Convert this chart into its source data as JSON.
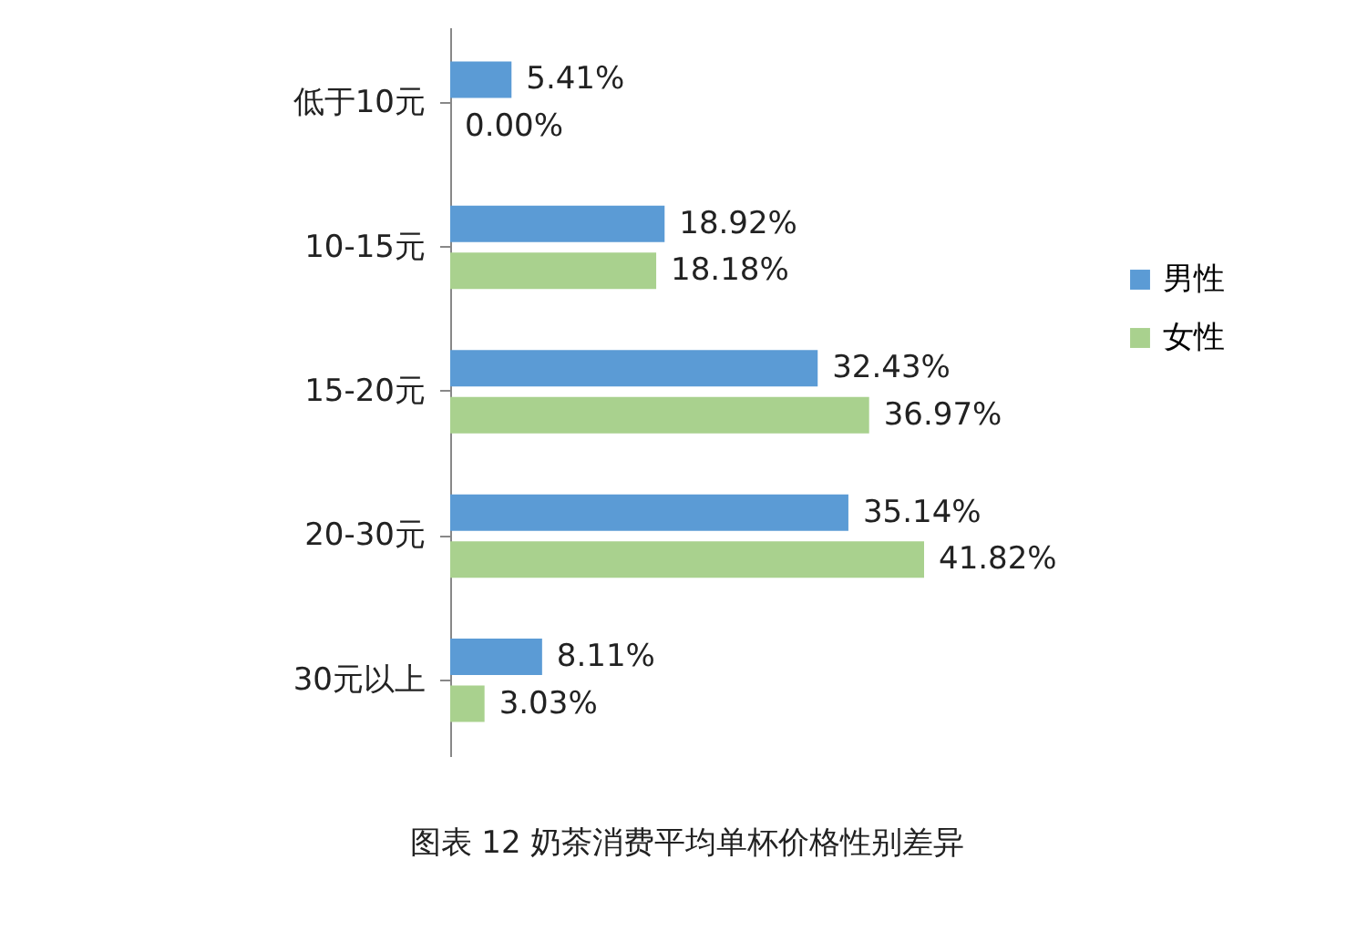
{
  "chart_data": {
    "type": "bar",
    "orientation": "horizontal",
    "title": "图表 12 奶茶消费平均单杯价格性别差异",
    "categories": [
      "低于10元",
      "10-15元",
      "15-20元",
      "20-30元",
      "30元以上"
    ],
    "series": [
      {
        "name": "男性",
        "color": "#5b9bd5",
        "values": [
          5.41,
          18.92,
          32.43,
          35.14,
          8.11
        ],
        "value_labels": [
          "5.41%",
          "18.92%",
          "32.43%",
          "35.14%",
          "8.11%"
        ]
      },
      {
        "name": "女性",
        "color": "#a9d18e",
        "values": [
          0.0,
          18.18,
          36.97,
          41.82,
          3.03
        ],
        "value_labels": [
          "0.00%",
          "18.18%",
          "36.97%",
          "41.82%",
          "3.03%"
        ]
      }
    ],
    "legend": "right",
    "grid": false
  }
}
